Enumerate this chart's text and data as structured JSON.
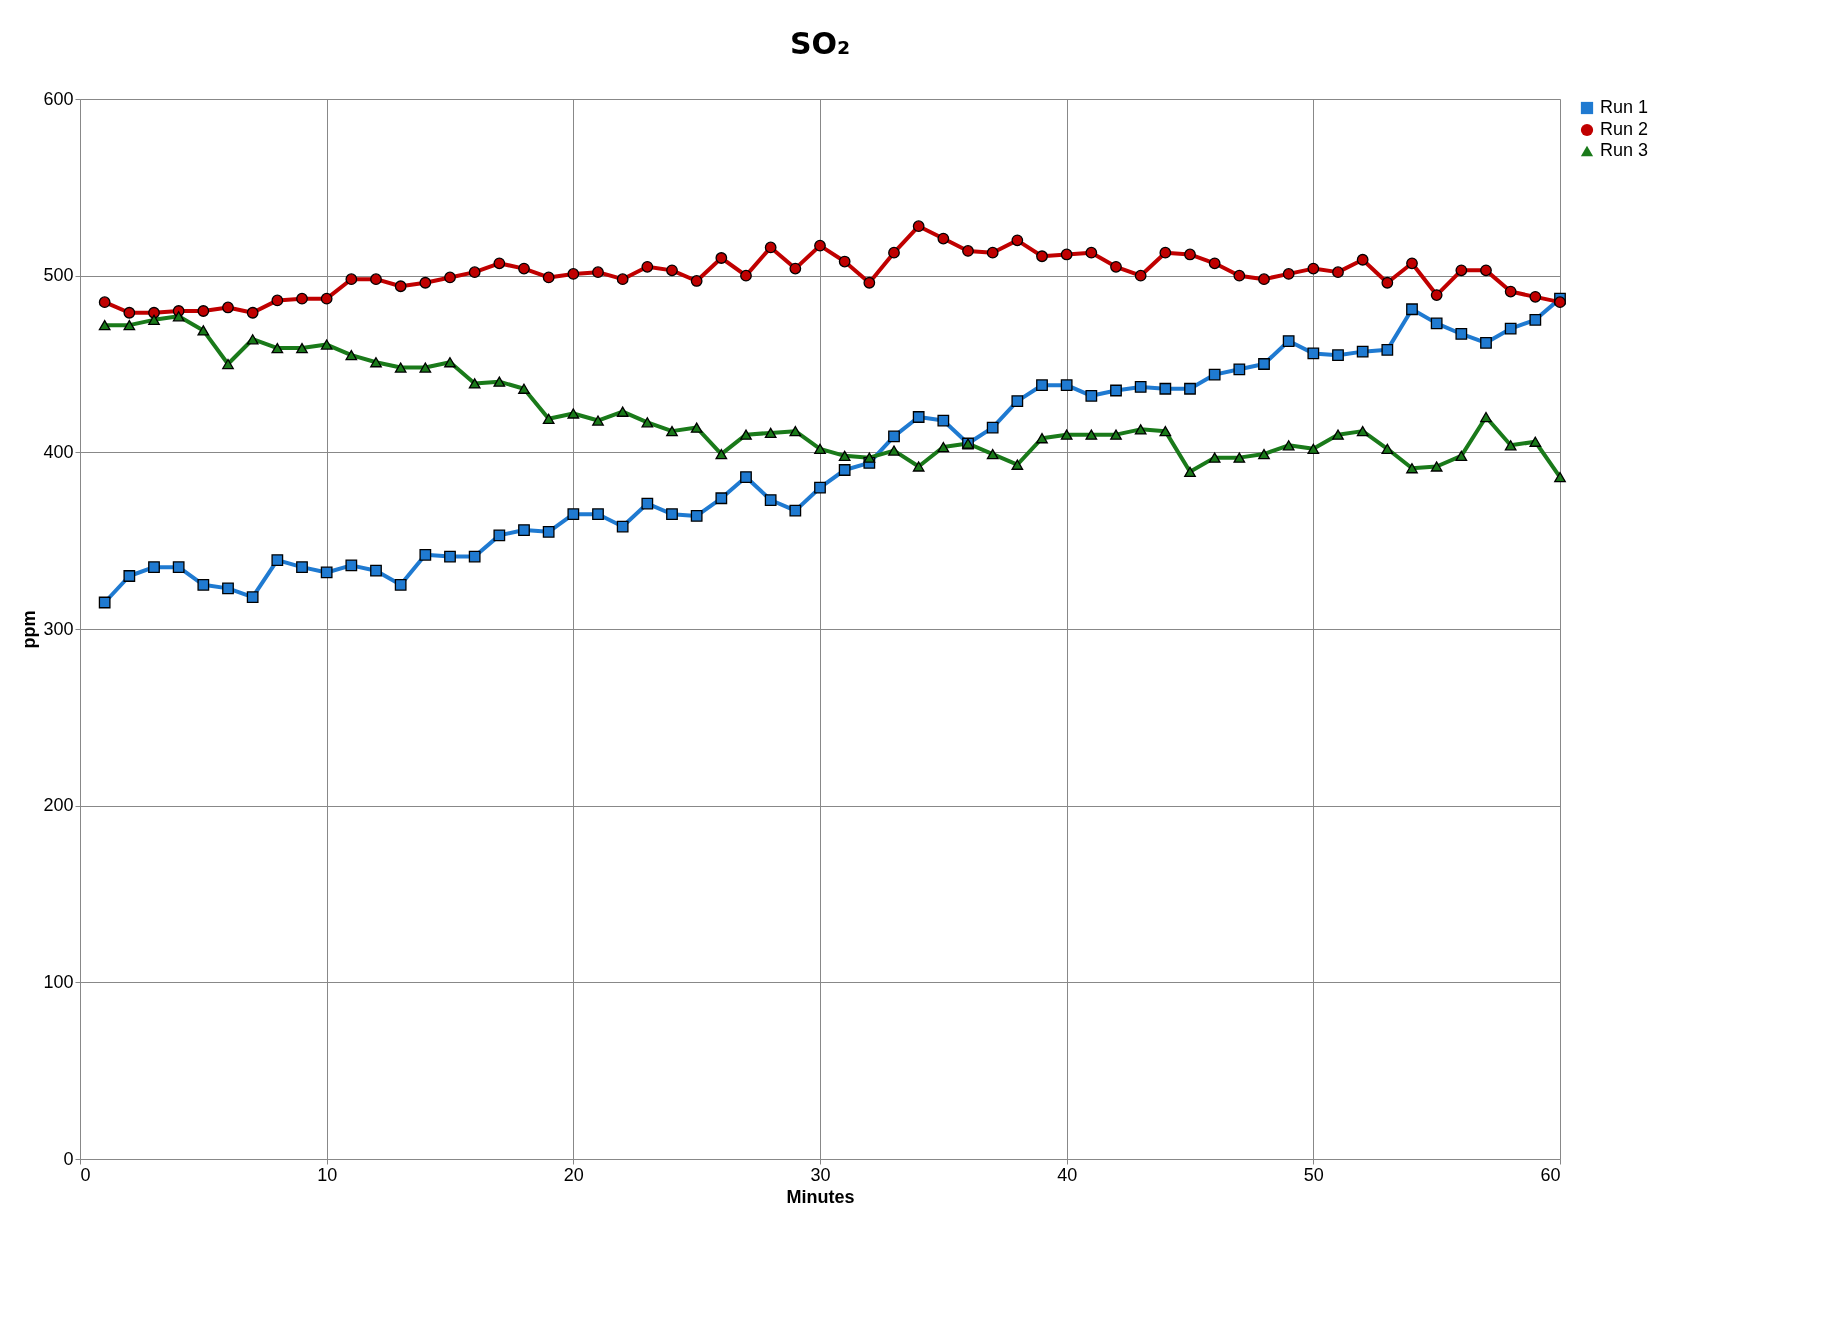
{
  "chart_data": {
    "type": "line",
    "title": "SO₂",
    "xlabel": "Minutes",
    "ylabel": "ppm",
    "x": [
      1,
      2,
      3,
      4,
      5,
      6,
      7,
      8,
      9,
      10,
      11,
      12,
      13,
      14,
      15,
      16,
      17,
      18,
      19,
      20,
      21,
      22,
      23,
      24,
      25,
      26,
      27,
      28,
      29,
      30,
      31,
      32,
      33,
      34,
      35,
      36,
      37,
      38,
      39,
      40,
      41,
      42,
      43,
      44,
      45,
      46,
      47,
      48,
      49,
      50,
      51,
      52,
      53,
      54,
      55,
      56,
      57,
      58,
      59,
      60
    ],
    "series": [
      {
        "name": "Run 1",
        "color": "#1f7ad1",
        "marker": "square",
        "values": [
          315,
          330,
          335,
          335,
          325,
          323,
          318,
          339,
          335,
          332,
          336,
          333,
          325,
          342,
          341,
          341,
          353,
          356,
          355,
          365,
          365,
          358,
          371,
          365,
          364,
          374,
          386,
          373,
          367,
          380,
          390,
          394,
          409,
          420,
          418,
          405,
          414,
          429,
          438,
          438,
          432,
          435,
          437,
          436,
          436,
          444,
          447,
          450,
          463,
          456,
          455,
          457,
          458,
          481,
          473,
          467,
          462,
          470,
          475,
          487
        ]
      },
      {
        "name": "Run 2",
        "color": "#c00000",
        "marker": "circle",
        "values": [
          485,
          479,
          479,
          480,
          480,
          482,
          479,
          486,
          487,
          487,
          498,
          498,
          494,
          496,
          499,
          502,
          507,
          504,
          499,
          501,
          502,
          498,
          505,
          503,
          497,
          510,
          500,
          516,
          504,
          517,
          508,
          496,
          513,
          528,
          521,
          514,
          513,
          520,
          511,
          512,
          513,
          505,
          500,
          513,
          512,
          507,
          500,
          498,
          501,
          504,
          502,
          509,
          496,
          507,
          489,
          503,
          503,
          491,
          488,
          485
        ]
      },
      {
        "name": "Run 3",
        "color": "#1a7a1a",
        "marker": "triangle",
        "values": [
          472,
          472,
          475,
          477,
          469,
          450,
          464,
          459,
          459,
          461,
          455,
          451,
          448,
          448,
          451,
          439,
          440,
          436,
          419,
          422,
          418,
          423,
          417,
          412,
          414,
          399,
          410,
          411,
          412,
          402,
          398,
          397,
          401,
          392,
          403,
          405,
          399,
          393,
          408,
          410,
          410,
          410,
          413,
          412,
          389,
          397,
          397,
          399,
          404,
          402,
          410,
          412,
          402,
          391,
          392,
          398,
          420,
          404,
          406,
          386
        ]
      }
    ],
    "xlim": [
      0,
      60
    ],
    "xticks": [
      0,
      10,
      20,
      30,
      40,
      50,
      60
    ],
    "ylim": [
      0,
      600
    ],
    "yticks": [
      0,
      100,
      200,
      300,
      400,
      500,
      600
    ],
    "grid": true,
    "legend": "right",
    "line_style": "solid"
  }
}
